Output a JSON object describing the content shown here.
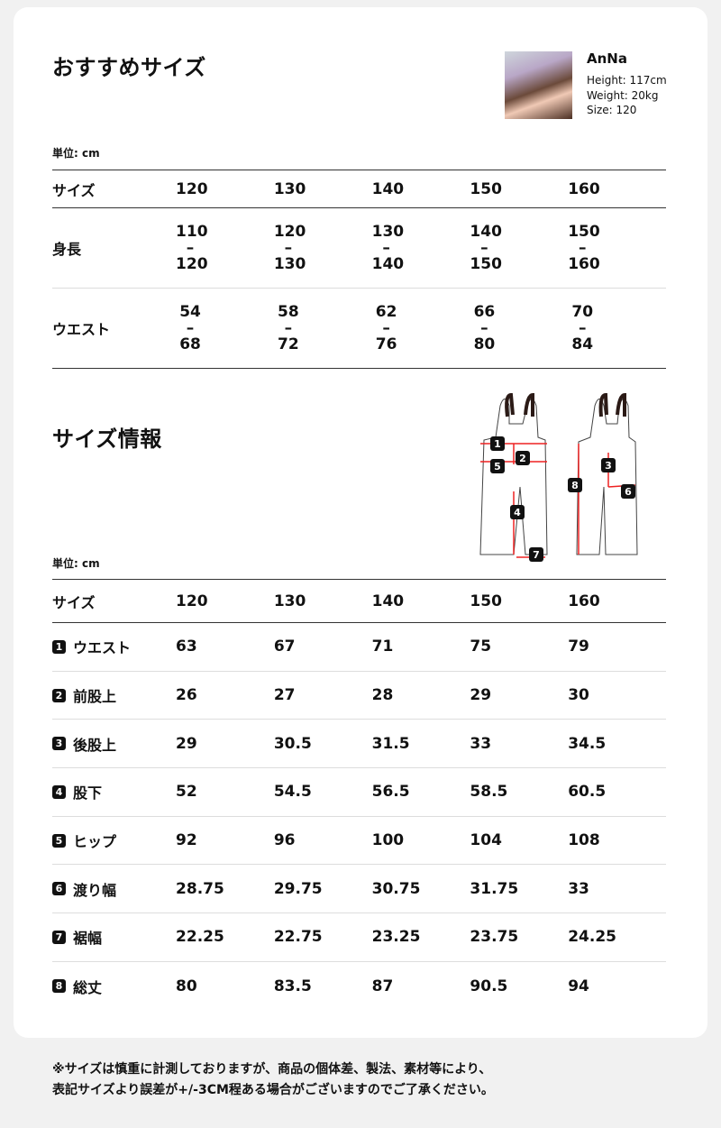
{
  "recommend": {
    "title": "おすすめサイズ",
    "unit": "単位: cm",
    "model": {
      "name": "AnNa",
      "height": "Height: 117cm",
      "weight": "Weight: 20kg",
      "size": "Size: 120"
    },
    "header": {
      "label": "サイズ",
      "sizes": [
        "120",
        "130",
        "140",
        "150",
        "160"
      ]
    },
    "rows": [
      {
        "label": "身長",
        "values": [
          [
            "110",
            "–",
            "120"
          ],
          [
            "120",
            "–",
            "130"
          ],
          [
            "130",
            "–",
            "140"
          ],
          [
            "140",
            "–",
            "150"
          ],
          [
            "150",
            "–",
            "160"
          ]
        ]
      },
      {
        "label": "ウエスト",
        "values": [
          [
            "54",
            "–",
            "68"
          ],
          [
            "58",
            "–",
            "72"
          ],
          [
            "62",
            "–",
            "76"
          ],
          [
            "66",
            "–",
            "80"
          ],
          [
            "70",
            "–",
            "84"
          ]
        ]
      }
    ]
  },
  "info": {
    "title": "サイズ情報",
    "unit": "単位: cm",
    "diagram_labels": [
      "1",
      "2",
      "3",
      "4",
      "5",
      "6",
      "7",
      "8"
    ],
    "header": {
      "label": "サイズ",
      "sizes": [
        "120",
        "130",
        "140",
        "150",
        "160"
      ]
    },
    "rows": [
      {
        "num": "1",
        "label": "ウエスト",
        "values": [
          "63",
          "67",
          "71",
          "75",
          "79"
        ]
      },
      {
        "num": "2",
        "label": "前股上",
        "values": [
          "26",
          "27",
          "28",
          "29",
          "30"
        ]
      },
      {
        "num": "3",
        "label": "後股上",
        "values": [
          "29",
          "30.5",
          "31.5",
          "33",
          "34.5"
        ]
      },
      {
        "num": "4",
        "label": "股下",
        "values": [
          "52",
          "54.5",
          "56.5",
          "58.5",
          "60.5"
        ]
      },
      {
        "num": "5",
        "label": "ヒップ",
        "values": [
          "92",
          "96",
          "100",
          "104",
          "108"
        ]
      },
      {
        "num": "6",
        "label": "渡り幅",
        "values": [
          "28.75",
          "29.75",
          "30.75",
          "31.75",
          "33"
        ]
      },
      {
        "num": "7",
        "label": "裾幅",
        "values": [
          "22.25",
          "22.75",
          "23.25",
          "23.75",
          "24.25"
        ]
      },
      {
        "num": "8",
        "label": "総丈",
        "values": [
          "80",
          "83.5",
          "87",
          "90.5",
          "94"
        ]
      }
    ]
  },
  "note": {
    "line1": "※サイズは慎重に計測しておりますが、商品の個体差、製法、素材等により、",
    "line2": "表記サイズより誤差が+/-3CM程ある場合がございますのでご了承ください。"
  }
}
